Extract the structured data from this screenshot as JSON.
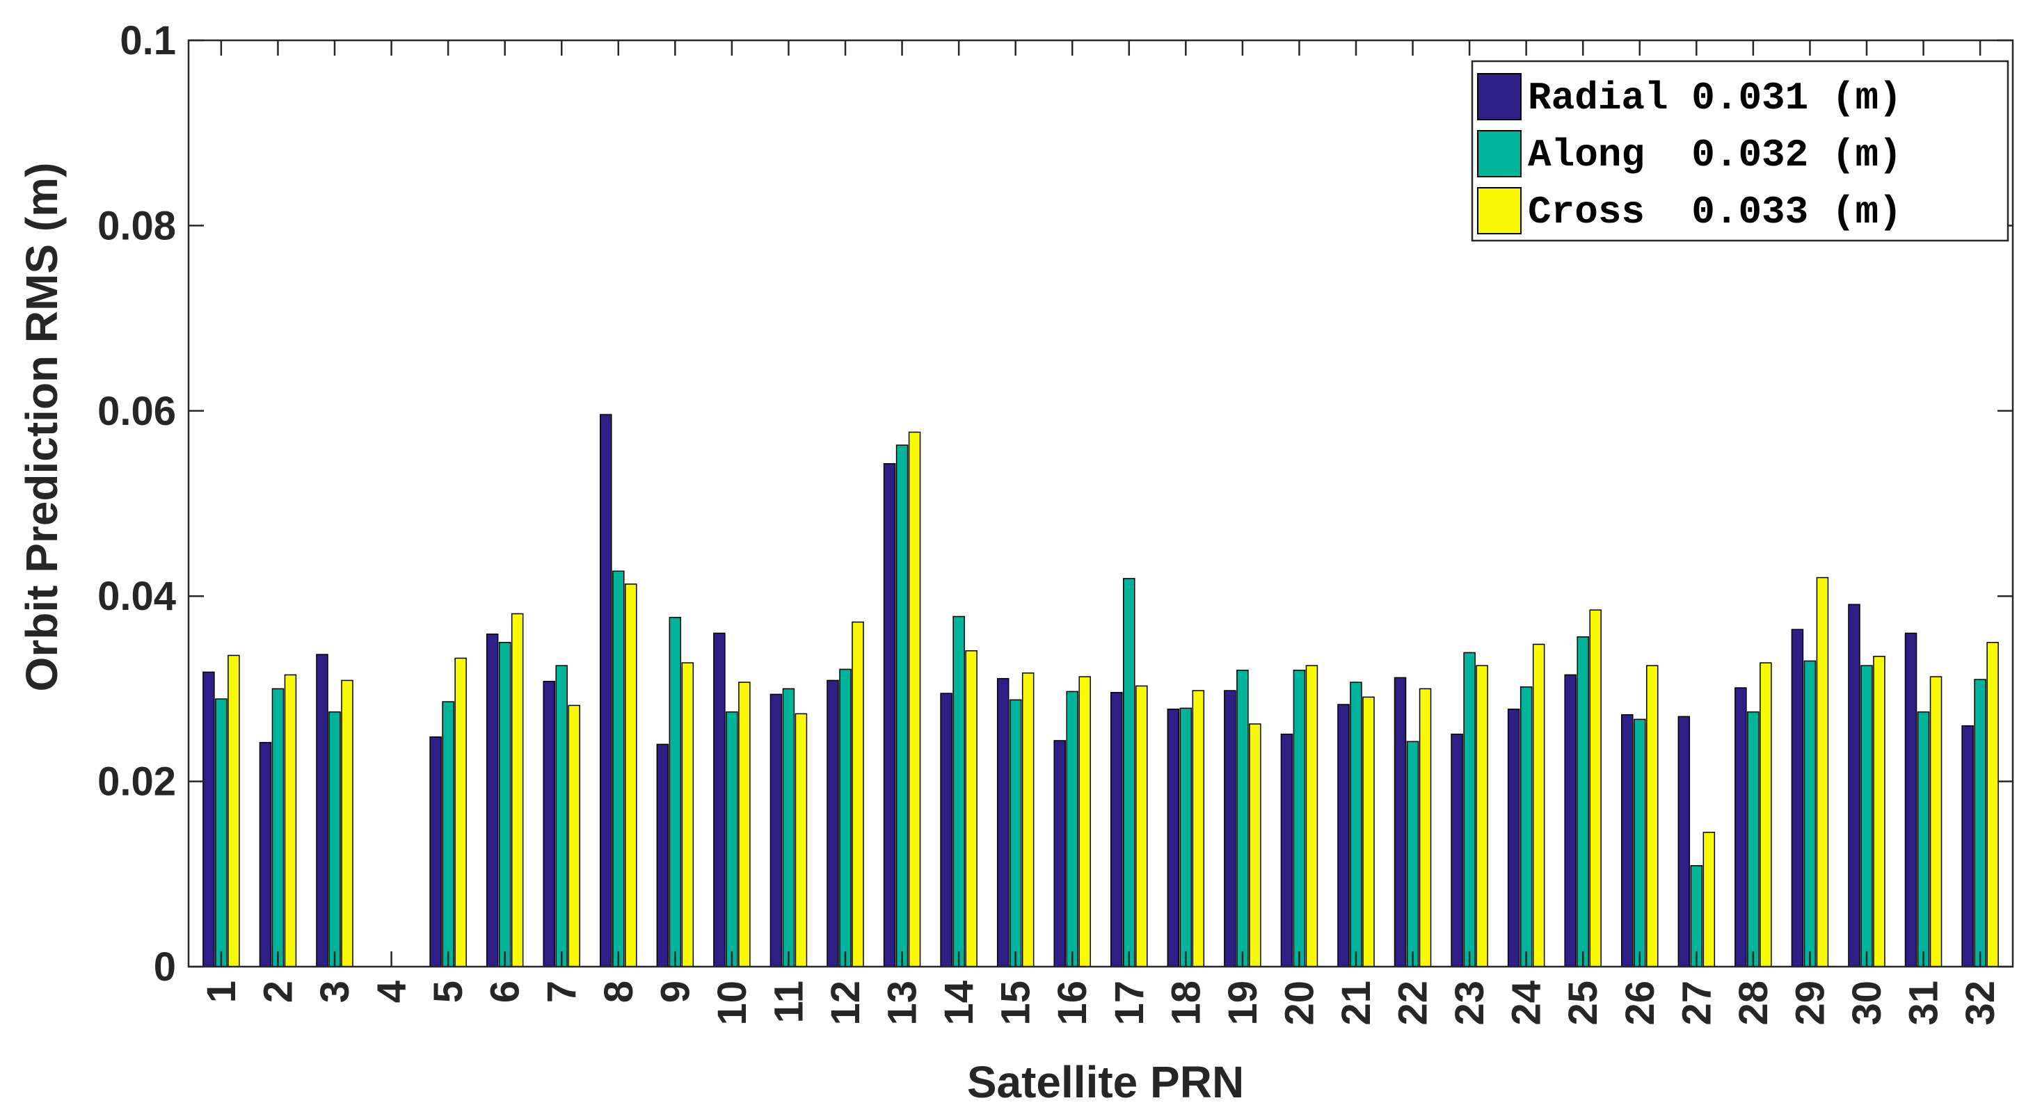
{
  "chart_data": {
    "type": "bar",
    "xlabel": "Satellite PRN",
    "ylabel": "Orbit Prediction RMS (m)",
    "ylim": [
      0,
      0.1
    ],
    "yticks": [
      "0",
      "0.02",
      "0.04",
      "0.06",
      "0.08",
      "0.1"
    ],
    "ytick_values": [
      0,
      0.02,
      0.04,
      0.06,
      0.08,
      0.1
    ],
    "categories": [
      "1",
      "2",
      "3",
      "4",
      "5",
      "6",
      "7",
      "8",
      "9",
      "10",
      "11",
      "12",
      "13",
      "14",
      "15",
      "16",
      "17",
      "18",
      "19",
      "20",
      "21",
      "22",
      "23",
      "24",
      "25",
      "26",
      "27",
      "28",
      "29",
      "30",
      "31",
      "32"
    ],
    "grid": false,
    "legend_position": "top-right",
    "series": [
      {
        "name": "Radial",
        "legend_label": "Radial 0.031 (m)",
        "color": "#2e1f86",
        "values": [
          0.0318,
          0.0242,
          0.0337,
          0,
          0.0248,
          0.0359,
          0.0308,
          0.0596,
          0.024,
          0.036,
          0.0294,
          0.0309,
          0.0543,
          0.0295,
          0.0311,
          0.0244,
          0.0296,
          0.0278,
          0.0298,
          0.0251,
          0.0283,
          0.0312,
          0.0251,
          0.0278,
          0.0315,
          0.0272,
          0.027,
          0.0301,
          0.0364,
          0.0391,
          0.036,
          0.026
        ]
      },
      {
        "name": "Along",
        "legend_label": "Along  0.032 (m)",
        "color": "#00b49c",
        "values": [
          0.0289,
          0.03,
          0.0275,
          0,
          0.0286,
          0.035,
          0.0325,
          0.0427,
          0.0377,
          0.0275,
          0.03,
          0.0321,
          0.0563,
          0.0378,
          0.0288,
          0.0297,
          0.0419,
          0.0279,
          0.032,
          0.032,
          0.0307,
          0.0243,
          0.0339,
          0.0302,
          0.0356,
          0.0267,
          0.0109,
          0.0275,
          0.033,
          0.0325,
          0.0275,
          0.031
        ]
      },
      {
        "name": "Cross",
        "legend_label": "Cross  0.033 (m)",
        "color": "#f9f905",
        "values": [
          0.0336,
          0.0315,
          0.0309,
          0,
          0.0333,
          0.0381,
          0.0282,
          0.0413,
          0.0328,
          0.0307,
          0.0273,
          0.0372,
          0.0577,
          0.0341,
          0.0317,
          0.0313,
          0.0303,
          0.0298,
          0.0262,
          0.0325,
          0.0291,
          0.03,
          0.0325,
          0.0348,
          0.0385,
          0.0325,
          0.0145,
          0.0328,
          0.042,
          0.0335,
          0.0313,
          0.035
        ]
      }
    ]
  }
}
